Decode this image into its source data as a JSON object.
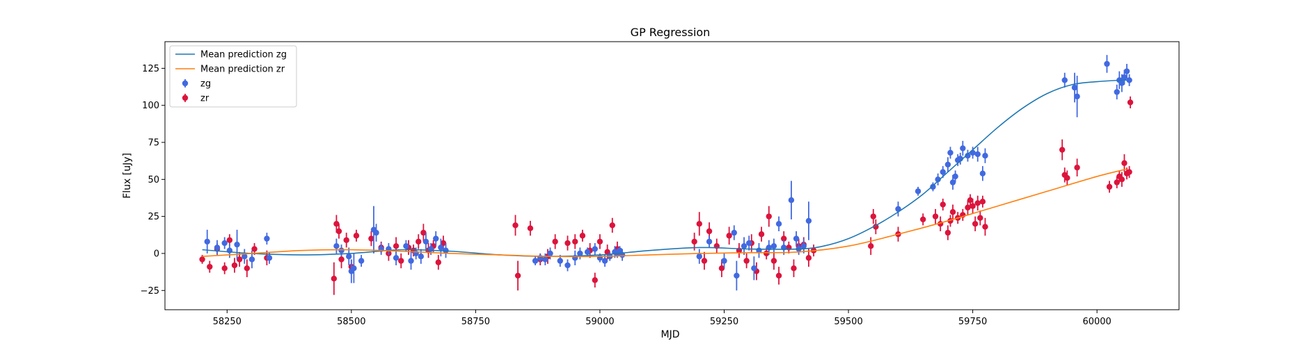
{
  "chart_data": {
    "type": "scatter",
    "title": "GP Regression",
    "xlabel": "MJD",
    "ylabel": "Flux [uJy]",
    "xlim": [
      58125,
      60165
    ],
    "ylim": [
      -38,
      143
    ],
    "xticks": [
      58250,
      58500,
      58750,
      59000,
      59250,
      59500,
      59750,
      60000
    ],
    "yticks": [
      -25,
      0,
      25,
      50,
      75,
      100,
      125
    ],
    "grid": false,
    "legend_position": "top-left",
    "colors": {
      "mean_zg": "#1f77b4",
      "mean_zr": "#ff7f0e",
      "zg": "#4169e1",
      "zr": "#dc143c"
    },
    "legend": [
      {
        "label": "Mean prediction zg",
        "kind": "line",
        "color": "#1f77b4"
      },
      {
        "label": "Mean prediction zr",
        "kind": "line",
        "color": "#ff7f0e"
      },
      {
        "label": "zg",
        "kind": "errorbar",
        "color": "#4169e1"
      },
      {
        "label": "zr",
        "kind": "errorbar",
        "color": "#dc143c"
      }
    ],
    "lines": [
      {
        "name": "Mean prediction zg",
        "color": "#1f77b4",
        "x": [
          58200,
          58300,
          58400,
          58500,
          58600,
          58700,
          58800,
          58900,
          59000,
          59100,
          59200,
          59300,
          59400,
          59450,
          59500,
          59550,
          59600,
          59650,
          59700,
          59750,
          59800,
          59850,
          59900,
          59950,
          60000,
          60050,
          60060
        ],
        "y": [
          2.5,
          0,
          -1,
          0,
          2.5,
          1.5,
          -1,
          -2,
          -1,
          2,
          4,
          3,
          3,
          5,
          10,
          18,
          28,
          40,
          55,
          70,
          85,
          98,
          108,
          114,
          116,
          117,
          117
        ]
      },
      {
        "name": "Mean prediction zr",
        "color": "#ff7f0e",
        "x": [
          58200,
          58300,
          58400,
          58500,
          58600,
          58700,
          58800,
          58900,
          59000,
          59100,
          59200,
          59300,
          59400,
          59500,
          59600,
          59700,
          59800,
          59900,
          60000,
          60060
        ],
        "y": [
          -2,
          0,
          2,
          2.5,
          1.5,
          0,
          -1,
          -2,
          -2,
          -1,
          0,
          0.5,
          1,
          5,
          13,
          22,
          32,
          42,
          52,
          57
        ]
      }
    ],
    "series": [
      {
        "name": "zg",
        "color": "#4169e1",
        "points": [
          [
            58210,
            8,
            8
          ],
          [
            58230,
            4,
            5
          ],
          [
            58245,
            7,
            4
          ],
          [
            58255,
            2,
            5
          ],
          [
            58270,
            6,
            10
          ],
          [
            58285,
            -2,
            5
          ],
          [
            58300,
            -4,
            6
          ],
          [
            58330,
            10,
            4
          ],
          [
            58335,
            -3,
            4
          ],
          [
            58470,
            5,
            5
          ],
          [
            58480,
            2,
            4
          ],
          [
            58495,
            -2,
            6
          ],
          [
            58500,
            -12,
            8
          ],
          [
            58505,
            -10,
            10
          ],
          [
            58520,
            -5,
            4
          ],
          [
            58545,
            16,
            16
          ],
          [
            58550,
            14,
            6
          ],
          [
            58560,
            3,
            4
          ],
          [
            58575,
            3,
            4
          ],
          [
            58590,
            -3,
            5
          ],
          [
            58610,
            5,
            4
          ],
          [
            58620,
            -5,
            6
          ],
          [
            58630,
            0,
            4
          ],
          [
            58640,
            -2,
            5
          ],
          [
            58650,
            8,
            6
          ],
          [
            58660,
            3,
            4
          ],
          [
            58670,
            10,
            5
          ],
          [
            58680,
            4,
            6
          ],
          [
            58690,
            2,
            5
          ],
          [
            58870,
            -5,
            3
          ],
          [
            58880,
            -3,
            3
          ],
          [
            58890,
            -4,
            4
          ],
          [
            58900,
            0,
            4
          ],
          [
            58920,
            -5,
            4
          ],
          [
            58935,
            -8,
            4
          ],
          [
            58950,
            -3,
            5
          ],
          [
            58960,
            0,
            4
          ],
          [
            58975,
            1,
            3
          ],
          [
            58990,
            3,
            4
          ],
          [
            59000,
            -3,
            3
          ],
          [
            59010,
            -5,
            4
          ],
          [
            59020,
            -2,
            3
          ],
          [
            59030,
            1,
            4
          ],
          [
            59035,
            0,
            3
          ],
          [
            59040,
            2,
            3
          ],
          [
            59045,
            -1,
            4
          ],
          [
            59200,
            -2,
            5
          ],
          [
            59220,
            8,
            4
          ],
          [
            59250,
            -5,
            5
          ],
          [
            59270,
            14,
            5
          ],
          [
            59275,
            -15,
            10
          ],
          [
            59290,
            5,
            6
          ],
          [
            59300,
            7,
            5
          ],
          [
            59310,
            -10,
            8
          ],
          [
            59320,
            2,
            5
          ],
          [
            59340,
            4,
            5
          ],
          [
            59350,
            5,
            5
          ],
          [
            59360,
            20,
            5
          ],
          [
            59370,
            4,
            5
          ],
          [
            59385,
            36,
            13
          ],
          [
            59395,
            10,
            5
          ],
          [
            59400,
            3,
            4
          ],
          [
            59410,
            5,
            5
          ],
          [
            59420,
            22,
            13
          ],
          [
            59600,
            30,
            5
          ],
          [
            59640,
            42,
            3
          ],
          [
            59670,
            45,
            3
          ],
          [
            59680,
            50,
            4
          ],
          [
            59690,
            55,
            4
          ],
          [
            59700,
            60,
            5
          ],
          [
            59705,
            68,
            4
          ],
          [
            59710,
            48,
            5
          ],
          [
            59715,
            52,
            4
          ],
          [
            59720,
            63,
            4
          ],
          [
            59725,
            64,
            4
          ],
          [
            59730,
            71,
            5
          ],
          [
            59740,
            66,
            4
          ],
          [
            59750,
            68,
            4
          ],
          [
            59760,
            67,
            5
          ],
          [
            59770,
            54,
            5
          ],
          [
            59775,
            66,
            5
          ],
          [
            59935,
            117,
            5
          ],
          [
            59955,
            112,
            10
          ],
          [
            59960,
            106,
            14
          ],
          [
            60020,
            128,
            6
          ],
          [
            60040,
            109,
            5
          ],
          [
            60045,
            117,
            6
          ],
          [
            60050,
            115,
            6
          ],
          [
            60055,
            119,
            5
          ],
          [
            60060,
            123,
            5
          ],
          [
            60065,
            117,
            4
          ]
        ]
      },
      {
        "name": "zr",
        "color": "#dc143c",
        "points": [
          [
            58200,
            -4,
            3
          ],
          [
            58215,
            -9,
            4
          ],
          [
            58230,
            3,
            4
          ],
          [
            58245,
            -10,
            4
          ],
          [
            58255,
            9,
            4
          ],
          [
            58265,
            -8,
            5
          ],
          [
            58275,
            -4,
            5
          ],
          [
            58290,
            -10,
            6
          ],
          [
            58305,
            3,
            4
          ],
          [
            58330,
            -3,
            5
          ],
          [
            58465,
            -17,
            11
          ],
          [
            58470,
            20,
            6
          ],
          [
            58475,
            15,
            5
          ],
          [
            58480,
            -4,
            6
          ],
          [
            58490,
            9,
            5
          ],
          [
            58500,
            -9,
            5
          ],
          [
            58510,
            12,
            4
          ],
          [
            58540,
            10,
            5
          ],
          [
            58560,
            4,
            4
          ],
          [
            58575,
            0,
            5
          ],
          [
            58590,
            5,
            6
          ],
          [
            58600,
            -5,
            5
          ],
          [
            58615,
            4,
            5
          ],
          [
            58625,
            2,
            4
          ],
          [
            58635,
            8,
            5
          ],
          [
            58645,
            14,
            6
          ],
          [
            58655,
            2,
            5
          ],
          [
            58665,
            5,
            4
          ],
          [
            58675,
            -6,
            5
          ],
          [
            58685,
            7,
            5
          ],
          [
            58830,
            19,
            7
          ],
          [
            58835,
            -15,
            10
          ],
          [
            58860,
            17,
            5
          ],
          [
            58880,
            -4,
            4
          ],
          [
            58895,
            -2,
            5
          ],
          [
            58910,
            8,
            5
          ],
          [
            58935,
            7,
            5
          ],
          [
            58950,
            8,
            5
          ],
          [
            58965,
            12,
            4
          ],
          [
            58980,
            2,
            5
          ],
          [
            58990,
            -18,
            5
          ],
          [
            59000,
            8,
            5
          ],
          [
            59015,
            1,
            5
          ],
          [
            59025,
            19,
            5
          ],
          [
            59035,
            3,
            5
          ],
          [
            59190,
            8,
            6
          ],
          [
            59200,
            20,
            8
          ],
          [
            59210,
            -5,
            6
          ],
          [
            59220,
            15,
            6
          ],
          [
            59235,
            5,
            5
          ],
          [
            59245,
            -10,
            6
          ],
          [
            59260,
            12,
            6
          ],
          [
            59280,
            2,
            5
          ],
          [
            59295,
            -5,
            5
          ],
          [
            59305,
            7,
            6
          ],
          [
            59315,
            -12,
            6
          ],
          [
            59325,
            13,
            5
          ],
          [
            59335,
            0,
            4
          ],
          [
            59340,
            25,
            7
          ],
          [
            59350,
            -5,
            6
          ],
          [
            59360,
            -15,
            6
          ],
          [
            59370,
            10,
            5
          ],
          [
            59380,
            4,
            4
          ],
          [
            59390,
            -10,
            6
          ],
          [
            59400,
            5,
            5
          ],
          [
            59410,
            6,
            5
          ],
          [
            59420,
            -3,
            6
          ],
          [
            59430,
            2,
            4
          ],
          [
            59545,
            5,
            6
          ],
          [
            59550,
            25,
            5
          ],
          [
            59555,
            18,
            5
          ],
          [
            59600,
            13,
            5
          ],
          [
            59650,
            23,
            4
          ],
          [
            59675,
            25,
            5
          ],
          [
            59685,
            20,
            5
          ],
          [
            59690,
            33,
            4
          ],
          [
            59700,
            14,
            5
          ],
          [
            59705,
            22,
            4
          ],
          [
            59710,
            28,
            5
          ],
          [
            59720,
            24,
            4
          ],
          [
            59730,
            26,
            4
          ],
          [
            59740,
            31,
            5
          ],
          [
            59745,
            36,
            4
          ],
          [
            59750,
            32,
            5
          ],
          [
            59755,
            20,
            5
          ],
          [
            59760,
            34,
            5
          ],
          [
            59765,
            24,
            5
          ],
          [
            59770,
            35,
            4
          ],
          [
            59775,
            18,
            6
          ],
          [
            59930,
            70,
            7
          ],
          [
            59935,
            53,
            5
          ],
          [
            59940,
            51,
            5
          ],
          [
            59960,
            58,
            6
          ],
          [
            60025,
            45,
            4
          ],
          [
            60040,
            48,
            4
          ],
          [
            60045,
            52,
            4
          ],
          [
            60050,
            50,
            5
          ],
          [
            60055,
            61,
            6
          ],
          [
            60060,
            54,
            4
          ],
          [
            60065,
            55,
            4
          ],
          [
            60067,
            102,
            4
          ]
        ]
      }
    ]
  }
}
